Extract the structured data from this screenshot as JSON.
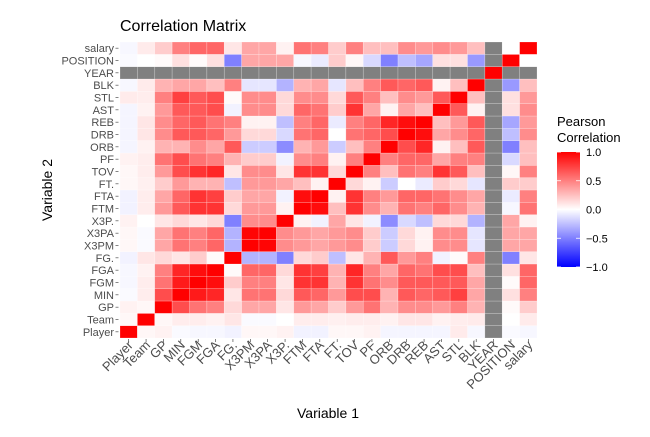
{
  "chart_data": {
    "type": "heatmap",
    "title": "Correlation Matrix",
    "xlabel": "Variable 1",
    "ylabel": "Variable 2",
    "variables": [
      "Player",
      "Team",
      "GP",
      "MIN",
      "FGM",
      "FGA",
      "FG.",
      "X3PM",
      "X3PA",
      "X3P.",
      "FTM",
      "FTA",
      "FT.",
      "TOV",
      "PF",
      "ORB",
      "DRB",
      "REB",
      "AST",
      "STL",
      "BLK",
      "YEAR",
      "POSITION",
      "salary"
    ],
    "matrix": [
      [
        1,
        0.03,
        0.05,
        -0.02,
        -0.03,
        -0.03,
        -0.05,
        0.03,
        0.03,
        0.05,
        -0.05,
        -0.05,
        0.03,
        0.03,
        0.05,
        -0.04,
        -0.04,
        -0.04,
        -0.04,
        0.08,
        -0.03,
        null,
        -0.02,
        -0.03
      ],
      [
        0.03,
        1,
        0.03,
        0.07,
        0.07,
        0.05,
        0.1,
        -0.02,
        -0.02,
        0,
        0.07,
        0.07,
        0.06,
        0.07,
        0.07,
        0.05,
        0.1,
        0.1,
        0.05,
        0.07,
        0.08,
        null,
        0,
        0.08
      ],
      [
        0.05,
        0.03,
        1,
        0.7,
        0.55,
        0.5,
        0.15,
        0.35,
        0.35,
        0.1,
        0.4,
        0.35,
        0.2,
        0.4,
        0.55,
        0.3,
        0.45,
        0.45,
        0.4,
        0.5,
        0.3,
        null,
        0.02,
        0.2
      ],
      [
        -0.02,
        0.07,
        0.7,
        1,
        0.9,
        0.85,
        0.1,
        0.55,
        0.55,
        0.15,
        0.65,
        0.6,
        0.4,
        0.7,
        0.7,
        0.3,
        0.65,
        0.6,
        0.65,
        0.75,
        0.35,
        null,
        0.12,
        0.5
      ],
      [
        -0.03,
        0.07,
        0.55,
        0.9,
        1,
        0.95,
        0.2,
        0.5,
        0.5,
        0.1,
        0.8,
        0.8,
        0.3,
        0.8,
        0.55,
        0.45,
        0.65,
        0.65,
        0.65,
        0.65,
        0.35,
        null,
        0.02,
        0.6
      ],
      [
        -0.03,
        0.05,
        0.5,
        0.85,
        0.95,
        1,
        0.02,
        0.6,
        0.6,
        0.15,
        0.8,
        0.75,
        0.3,
        0.85,
        0.5,
        0.35,
        0.6,
        0.55,
        0.7,
        0.7,
        0.25,
        null,
        0.12,
        0.6
      ],
      [
        -0.05,
        0.1,
        0.15,
        0.1,
        0.2,
        0.02,
        1,
        -0.3,
        -0.3,
        -0.5,
        0.15,
        0.2,
        -0.25,
        0.1,
        0.3,
        0.65,
        0.4,
        0.5,
        -0.05,
        0.02,
        0.5,
        null,
        -0.5,
        0.1
      ],
      [
        0.03,
        -0.02,
        0.35,
        0.55,
        0.5,
        0.6,
        -0.3,
        1,
        0.98,
        0.45,
        0.4,
        0.35,
        0.4,
        0.45,
        0.2,
        -0.2,
        0.15,
        0.05,
        0.45,
        0.45,
        -0.1,
        null,
        0.35,
        0.35
      ],
      [
        0.03,
        -0.02,
        0.35,
        0.55,
        0.5,
        0.6,
        -0.3,
        0.98,
        1,
        0.45,
        0.4,
        0.35,
        0.4,
        0.45,
        0.2,
        -0.2,
        0.15,
        0.05,
        0.45,
        0.45,
        -0.1,
        null,
        0.35,
        0.35
      ],
      [
        0.05,
        0,
        0.1,
        0.15,
        0.1,
        0.15,
        -0.5,
        0.45,
        0.45,
        1,
        0.05,
        -0.05,
        0.35,
        0.1,
        -0.05,
        -0.45,
        -0.15,
        -0.25,
        0.15,
        0.15,
        -0.3,
        null,
        0.35,
        0.05
      ],
      [
        -0.05,
        0.07,
        0.4,
        0.65,
        0.8,
        0.8,
        0.15,
        0.4,
        0.4,
        0.05,
        1,
        0.95,
        0.25,
        0.8,
        0.45,
        0.3,
        0.55,
        0.5,
        0.6,
        0.45,
        0.3,
        null,
        -0.03,
        0.55
      ],
      [
        -0.05,
        0.07,
        0.35,
        0.6,
        0.8,
        0.75,
        0.2,
        0.35,
        0.35,
        -0.05,
        0.95,
        1,
        0.05,
        0.8,
        0.5,
        0.4,
        0.6,
        0.6,
        0.55,
        0.45,
        0.35,
        null,
        -0.08,
        0.5
      ],
      [
        0.03,
        0.06,
        0.2,
        0.4,
        0.3,
        0.3,
        -0.25,
        0.4,
        0.4,
        0.35,
        0.25,
        0.05,
        1,
        0.15,
        0.05,
        -0.2,
        0,
        -0.08,
        0.2,
        0.15,
        -0.1,
        null,
        0.2,
        0.2
      ],
      [
        0.03,
        0.07,
        0.4,
        0.7,
        0.8,
        0.85,
        0.1,
        0.45,
        0.45,
        0.1,
        0.8,
        0.8,
        0.15,
        1,
        0.5,
        0.25,
        0.55,
        0.5,
        0.8,
        0.65,
        0.25,
        null,
        0.03,
        0.5
      ],
      [
        0.05,
        0.07,
        0.55,
        0.7,
        0.55,
        0.5,
        0.3,
        0.2,
        0.2,
        -0.05,
        0.45,
        0.5,
        0.05,
        0.5,
        1,
        0.5,
        0.6,
        0.6,
        0.35,
        0.5,
        0.5,
        null,
        -0.15,
        0.25
      ],
      [
        -0.04,
        0.05,
        0.3,
        0.3,
        0.45,
        0.35,
        0.65,
        -0.2,
        -0.2,
        -0.45,
        0.3,
        0.4,
        -0.2,
        0.25,
        0.5,
        1,
        0.7,
        0.85,
        0.05,
        0.25,
        0.65,
        null,
        -0.5,
        0.25
      ],
      [
        -0.04,
        0.1,
        0.45,
        0.65,
        0.65,
        0.6,
        0.4,
        0.15,
        0.15,
        -0.15,
        0.55,
        0.6,
        0,
        0.55,
        0.6,
        0.7,
        1,
        0.95,
        0.35,
        0.45,
        0.6,
        null,
        -0.25,
        0.45
      ],
      [
        -0.04,
        0.1,
        0.45,
        0.6,
        0.65,
        0.55,
        0.5,
        0.05,
        0.05,
        -0.25,
        0.5,
        0.6,
        -0.08,
        0.5,
        0.6,
        0.85,
        0.95,
        1,
        0.25,
        0.4,
        0.65,
        null,
        -0.35,
        0.4
      ],
      [
        -0.04,
        0.05,
        0.4,
        0.65,
        0.65,
        0.7,
        -0.05,
        0.45,
        0.45,
        0.15,
        0.6,
        0.55,
        0.2,
        0.8,
        0.35,
        0.05,
        0.35,
        0.25,
        1,
        0.65,
        0.05,
        null,
        0.12,
        0.45
      ],
      [
        0.08,
        0.07,
        0.5,
        0.75,
        0.65,
        0.7,
        0.02,
        0.45,
        0.45,
        0.15,
        0.45,
        0.45,
        0.15,
        0.65,
        0.5,
        0.25,
        0.45,
        0.4,
        0.65,
        1,
        0.25,
        null,
        0.12,
        0.4
      ],
      [
        -0.03,
        0.08,
        0.3,
        0.35,
        0.35,
        0.25,
        0.5,
        -0.1,
        -0.1,
        -0.3,
        0.3,
        0.35,
        -0.1,
        0.25,
        0.5,
        0.65,
        0.6,
        0.65,
        0.05,
        0.25,
        1,
        null,
        -0.4,
        0.25
      ],
      [
        null,
        null,
        null,
        null,
        null,
        null,
        null,
        null,
        null,
        null,
        null,
        null,
        null,
        null,
        null,
        null,
        null,
        null,
        null,
        null,
        null,
        1,
        null,
        null
      ],
      [
        -0.02,
        0,
        0.02,
        0.12,
        0.02,
        0.12,
        -0.5,
        0.35,
        0.35,
        0.35,
        -0.03,
        -0.08,
        0.2,
        0.03,
        -0.15,
        -0.5,
        -0.25,
        -0.35,
        0.12,
        0.12,
        -0.4,
        null,
        1,
        0
      ],
      [
        -0.03,
        0.08,
        0.2,
        0.5,
        0.6,
        0.6,
        0.1,
        0.35,
        0.35,
        0.05,
        0.55,
        0.5,
        0.2,
        0.5,
        0.25,
        0.25,
        0.45,
        0.4,
        0.45,
        0.4,
        0.25,
        null,
        0,
        1
      ]
    ],
    "value_range": [
      -1,
      1
    ],
    "legend": {
      "title_lines": [
        "Pearson",
        "Correlation"
      ],
      "ticks": [
        1.0,
        0.5,
        0.0,
        -0.5,
        -1.0
      ],
      "tick_labels": [
        "1.0",
        "0.5",
        "0.0",
        "−0.5",
        "−1.0"
      ],
      "placement": "right"
    },
    "colors": {
      "low": "#0000ff",
      "mid": "#ffffff",
      "high": "#ff0000",
      "na": "#808080"
    },
    "grid": false
  }
}
